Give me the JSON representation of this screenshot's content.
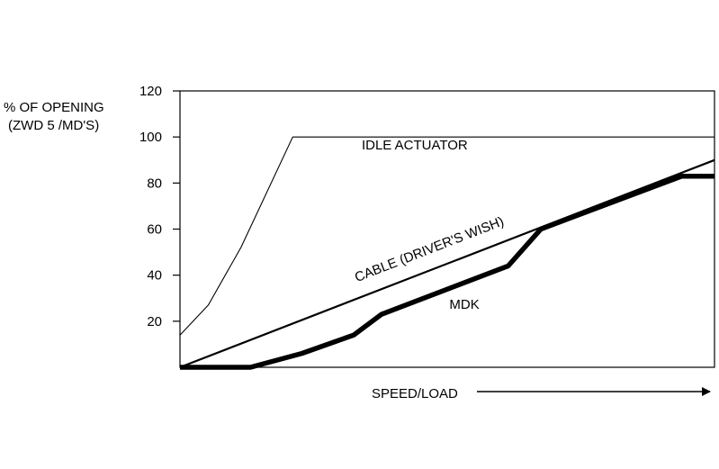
{
  "chart_data": {
    "type": "line",
    "ylabel_line1": "% OF OPENING",
    "ylabel_line2": "(ZWD 5 /MD'S)",
    "xlabel": "SPEED/LOAD",
    "ylim": [
      0,
      120
    ],
    "xlim": [
      0,
      1
    ],
    "yticks": [
      20,
      40,
      60,
      80,
      100,
      120
    ],
    "grid": false,
    "series": [
      {
        "name": "IDLE ACTUATOR",
        "weight": "thin",
        "points": [
          [
            0,
            14
          ],
          [
            0.053,
            27
          ],
          [
            0.114,
            52
          ],
          [
            0.211,
            100
          ],
          [
            1,
            100
          ]
        ]
      },
      {
        "name": "CABLE (DRIVER'S WISH)",
        "weight": "medium",
        "points": [
          [
            0,
            0
          ],
          [
            1,
            90
          ]
        ]
      },
      {
        "name": "MDK",
        "weight": "thick",
        "points": [
          [
            0,
            0
          ],
          [
            0.132,
            0
          ],
          [
            0.228,
            6
          ],
          [
            0.325,
            14
          ],
          [
            0.377,
            23
          ],
          [
            0.614,
            44
          ],
          [
            0.675,
            60
          ],
          [
            0.939,
            83
          ],
          [
            1,
            83
          ]
        ]
      }
    ],
    "annotations": [
      {
        "text": "IDLE ACTUATOR",
        "x": 0.34,
        "y": 94.5,
        "rotate": false
      },
      {
        "text": "CABLE (DRIVER'S WISH)",
        "x": 0.331,
        "y": 37,
        "rotate": true
      },
      {
        "text": "MDK",
        "x": 0.504,
        "y": 25.5,
        "rotate": false
      }
    ]
  }
}
